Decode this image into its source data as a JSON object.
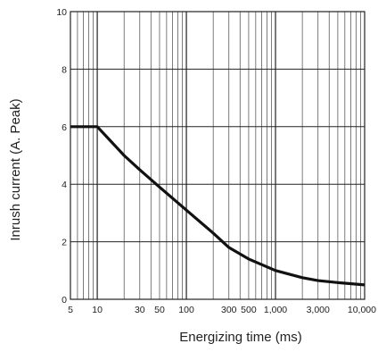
{
  "chart_data": {
    "type": "line",
    "title": "",
    "xlabel": "Energizing time (ms)",
    "ylabel": "Inrush current  (A. Peak)",
    "x_scale": "log",
    "xlim": [
      5,
      10000
    ],
    "ylim": [
      0,
      10
    ],
    "grid": true,
    "x_ticks": [
      {
        "value": 5,
        "label": "5"
      },
      {
        "value": 10,
        "label": "10"
      },
      {
        "value": 30,
        "label": "30"
      },
      {
        "value": 50,
        "label": "50"
      },
      {
        "value": 100,
        "label": "100"
      },
      {
        "value": 300,
        "label": "300"
      },
      {
        "value": 500,
        "label": "500"
      },
      {
        "value": 1000,
        "label": "1,000"
      },
      {
        "value": 3000,
        "label": "3,000"
      },
      {
        "value": 10000,
        "label": "10,000"
      }
    ],
    "y_ticks": [
      {
        "value": 0,
        "label": "0"
      },
      {
        "value": 2,
        "label": "2"
      },
      {
        "value": 4,
        "label": "4"
      },
      {
        "value": 6,
        "label": "6"
      },
      {
        "value": 8,
        "label": "8"
      },
      {
        "value": 10,
        "label": "10"
      }
    ],
    "series": [
      {
        "x": [
          5,
          10,
          20,
          30,
          50,
          100,
          200,
          300,
          500,
          1000,
          2000,
          3000,
          5000,
          10000
        ],
        "y": [
          6.0,
          6.0,
          5.0,
          4.5,
          3.9,
          3.1,
          2.3,
          1.8,
          1.4,
          1.0,
          0.75,
          0.65,
          0.58,
          0.5
        ]
      }
    ]
  }
}
